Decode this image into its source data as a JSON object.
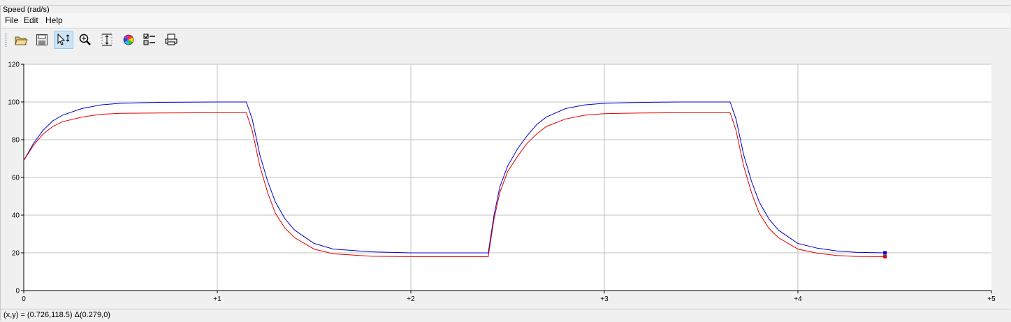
{
  "window": {
    "group_title": "Speed (rad/s)"
  },
  "menu": [
    "File",
    "Edit",
    "Help"
  ],
  "toolbar": {
    "buttons": [
      {
        "name": "open-icon",
        "active": false
      },
      {
        "name": "save-icon",
        "active": false
      },
      {
        "name": "pointer-icon",
        "active": true
      },
      {
        "name": "zoom-icon",
        "active": false
      },
      {
        "name": "fit-vertical-icon",
        "active": false
      },
      {
        "name": "color-wheel-icon",
        "active": false
      },
      {
        "name": "legend-checklist-icon",
        "active": false
      },
      {
        "name": "print-icon",
        "active": false
      }
    ]
  },
  "status": {
    "text": "(x,y) = (0.726,118.5) Δ(0.279,0)"
  },
  "chart_data": {
    "type": "line",
    "title": "",
    "xlabel": "",
    "ylabel": "",
    "xlim": [
      0,
      5
    ],
    "ylim": [
      0,
      120
    ],
    "grid": true,
    "x_ticks": [
      "0",
      "+1",
      "+2",
      "+3",
      "+4",
      "+5"
    ],
    "y_ticks": [
      "0",
      "20",
      "40",
      "60",
      "80",
      "100",
      "120"
    ],
    "colors": {
      "blue": "#0000cc",
      "red": "#dd0000",
      "grid": "#c0c0c0"
    },
    "series": [
      {
        "color": "blue",
        "x": [
          0,
          0.05,
          0.1,
          0.15,
          0.2,
          0.3,
          0.4,
          0.5,
          0.7,
          1.0,
          1.15,
          1.18,
          1.22,
          1.26,
          1.3,
          1.35,
          1.4,
          1.5,
          1.6,
          1.8,
          2.0,
          2.2,
          2.4,
          2.43,
          2.46,
          2.5,
          2.55,
          2.6,
          2.65,
          2.7,
          2.8,
          2.9,
          3.0,
          3.2,
          3.4,
          3.65,
          3.68,
          3.72,
          3.76,
          3.8,
          3.85,
          3.9,
          4.0,
          4.1,
          4.2,
          4.3,
          4.45
        ],
        "y": [
          69,
          78,
          85,
          90,
          93,
          96.5,
          98.5,
          99.3,
          99.8,
          100,
          100,
          91,
          72,
          58,
          47,
          38,
          32,
          25,
          22,
          20.5,
          20,
          20,
          20,
          40,
          55,
          66,
          75,
          82,
          88,
          92,
          96.5,
          98.5,
          99.3,
          99.8,
          100,
          100,
          91,
          72,
          58,
          47,
          38,
          32,
          25,
          22.5,
          21,
          20.3,
          20
        ]
      },
      {
        "color": "red",
        "x": [
          0,
          0.05,
          0.1,
          0.15,
          0.2,
          0.3,
          0.4,
          0.5,
          0.7,
          1.0,
          1.15,
          1.18,
          1.22,
          1.26,
          1.3,
          1.35,
          1.4,
          1.5,
          1.6,
          1.8,
          2.0,
          2.2,
          2.4,
          2.43,
          2.46,
          2.5,
          2.55,
          2.6,
          2.65,
          2.7,
          2.8,
          2.9,
          3.0,
          3.2,
          3.4,
          3.65,
          3.68,
          3.72,
          3.76,
          3.8,
          3.85,
          3.9,
          4.0,
          4.1,
          4.2,
          4.3,
          4.45
        ],
        "y": [
          69,
          77,
          83,
          87,
          89.5,
          92,
          93.5,
          94,
          94.2,
          94.3,
          94.3,
          85,
          66,
          52,
          41,
          33,
          28,
          22,
          19.5,
          18.2,
          18,
          18,
          18,
          38,
          52,
          63,
          71,
          78,
          83,
          87,
          91,
          93,
          93.8,
          94.2,
          94.3,
          94.3,
          85,
          66,
          52,
          41,
          33,
          28,
          22,
          19.8,
          18.6,
          18.1,
          18
        ]
      }
    ]
  }
}
